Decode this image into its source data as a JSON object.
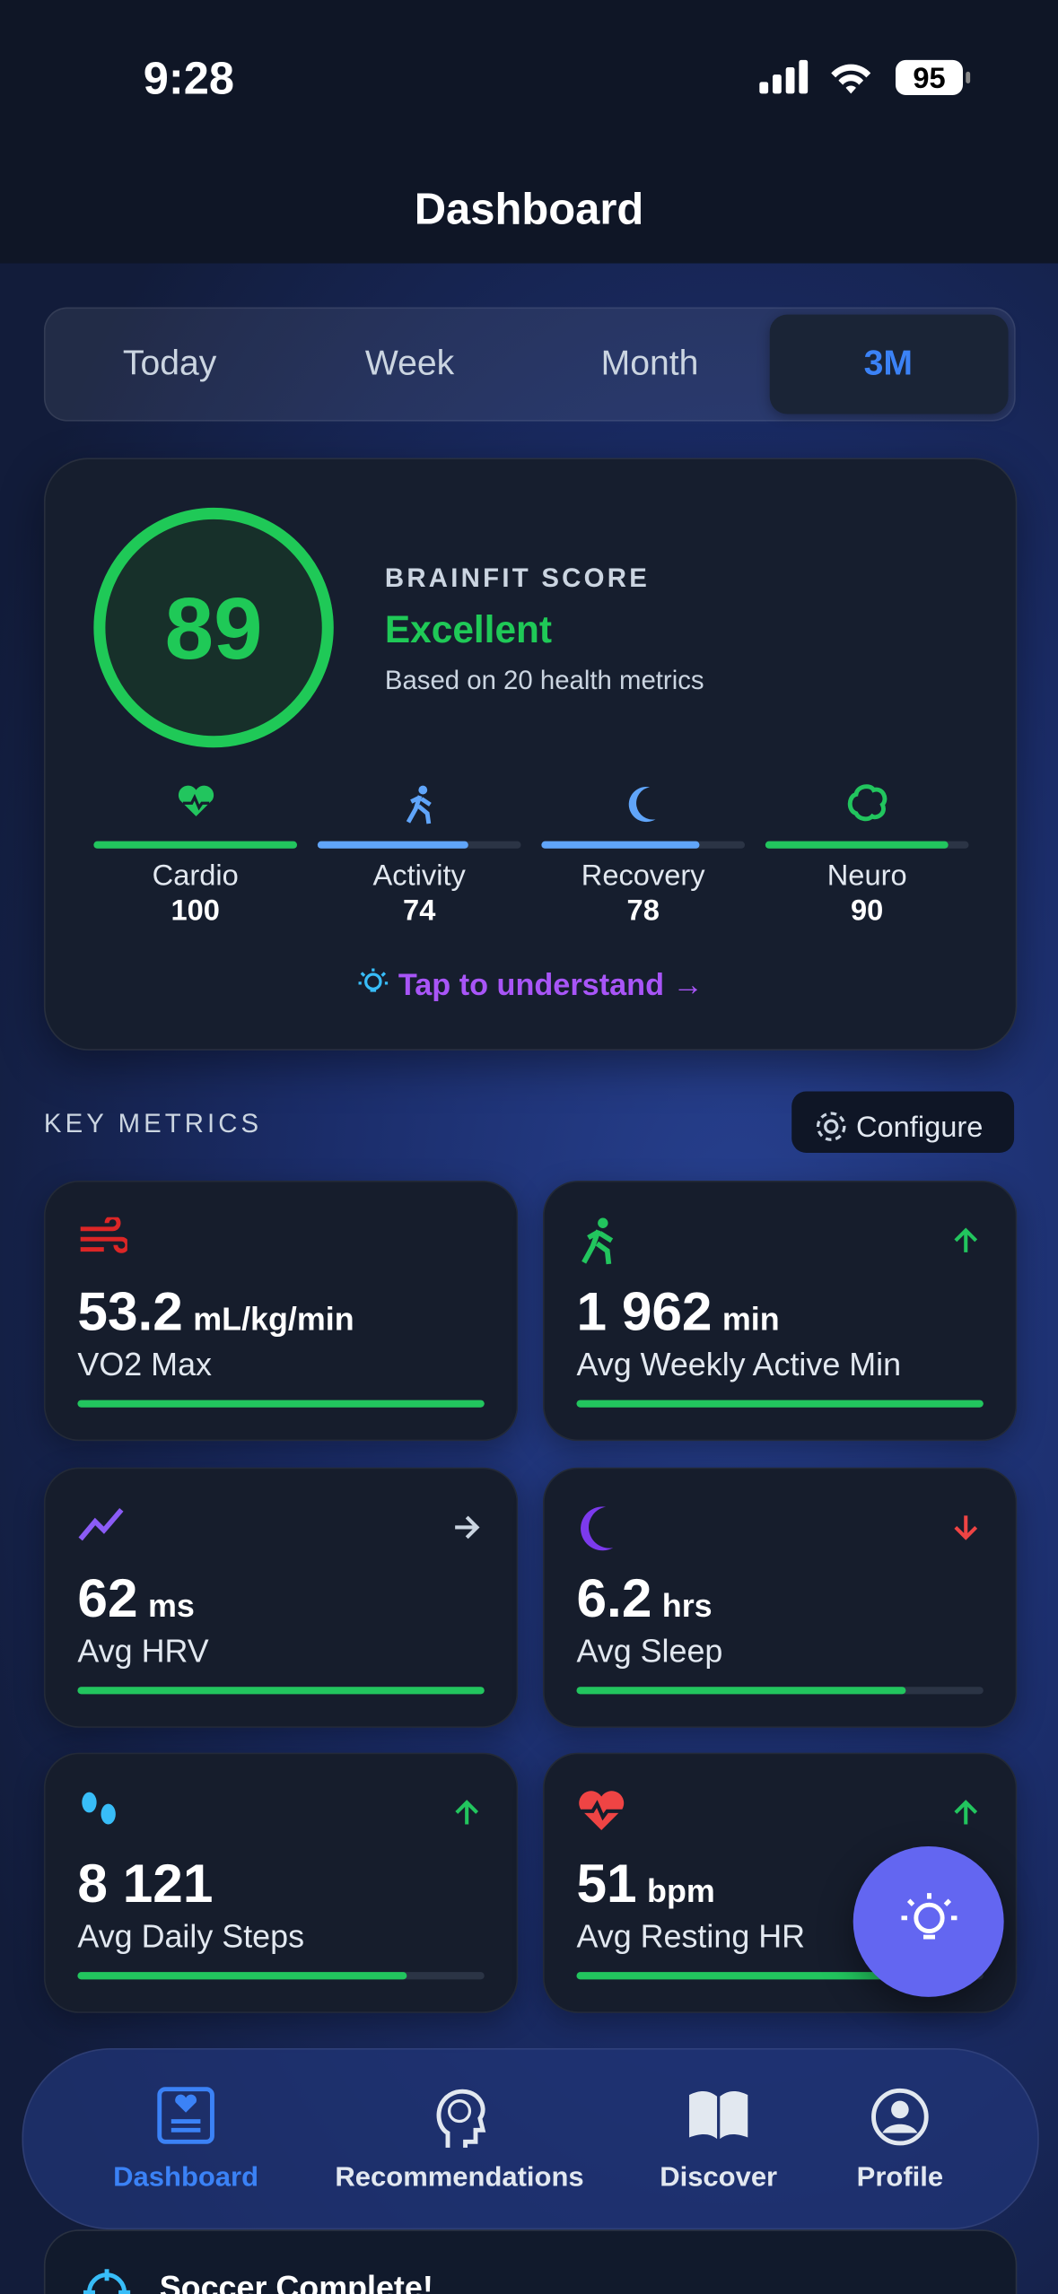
{
  "status_bar": {
    "time": "9:28",
    "battery": "95"
  },
  "header": {
    "title": "Dashboard"
  },
  "range_tabs": {
    "tabs": [
      "Today",
      "Week",
      "Month",
      "3M"
    ],
    "selected_index": 3
  },
  "score_card": {
    "score": "89",
    "label": "BRAINFIT SCORE",
    "rating": "Excellent",
    "subtitle": "Based on 20 health metrics",
    "pillars": [
      {
        "name": "Cardio",
        "score": 100,
        "color": "#22c55e"
      },
      {
        "name": "Activity",
        "score": 74,
        "color": "#60a5fa"
      },
      {
        "name": "Recovery",
        "score": 78,
        "color": "#60a5fa"
      },
      {
        "name": "Neuro",
        "score": 90,
        "color": "#22c55e"
      }
    ],
    "cta": "Tap to understand →"
  },
  "key_metrics": {
    "title": "KEY METRICS",
    "configure": "Configure",
    "cards": [
      {
        "value": "53.2",
        "unit": "mL/kg/min",
        "label": "VO2 Max"
      },
      {
        "value": "1 962",
        "unit": "min",
        "label": "Avg Weekly Active Min",
        "trend": "up"
      },
      {
        "value": "62",
        "unit": "ms",
        "label": "Avg HRV",
        "trend": "flat"
      },
      {
        "value": "6.2",
        "unit": "hrs",
        "label": "Avg Sleep",
        "trend": "down"
      },
      {
        "value": "8 121",
        "unit": "",
        "label": "Avg Daily Steps",
        "trend": "up"
      },
      {
        "value": "51",
        "unit": "bpm",
        "label": "Avg Resting HR",
        "trend": "up"
      }
    ]
  },
  "nav": {
    "items": [
      "Dashboard",
      "Recommendations",
      "Discover",
      "Profile"
    ],
    "active_index": 0
  },
  "toast": {
    "title": "Soccer Complete!"
  }
}
